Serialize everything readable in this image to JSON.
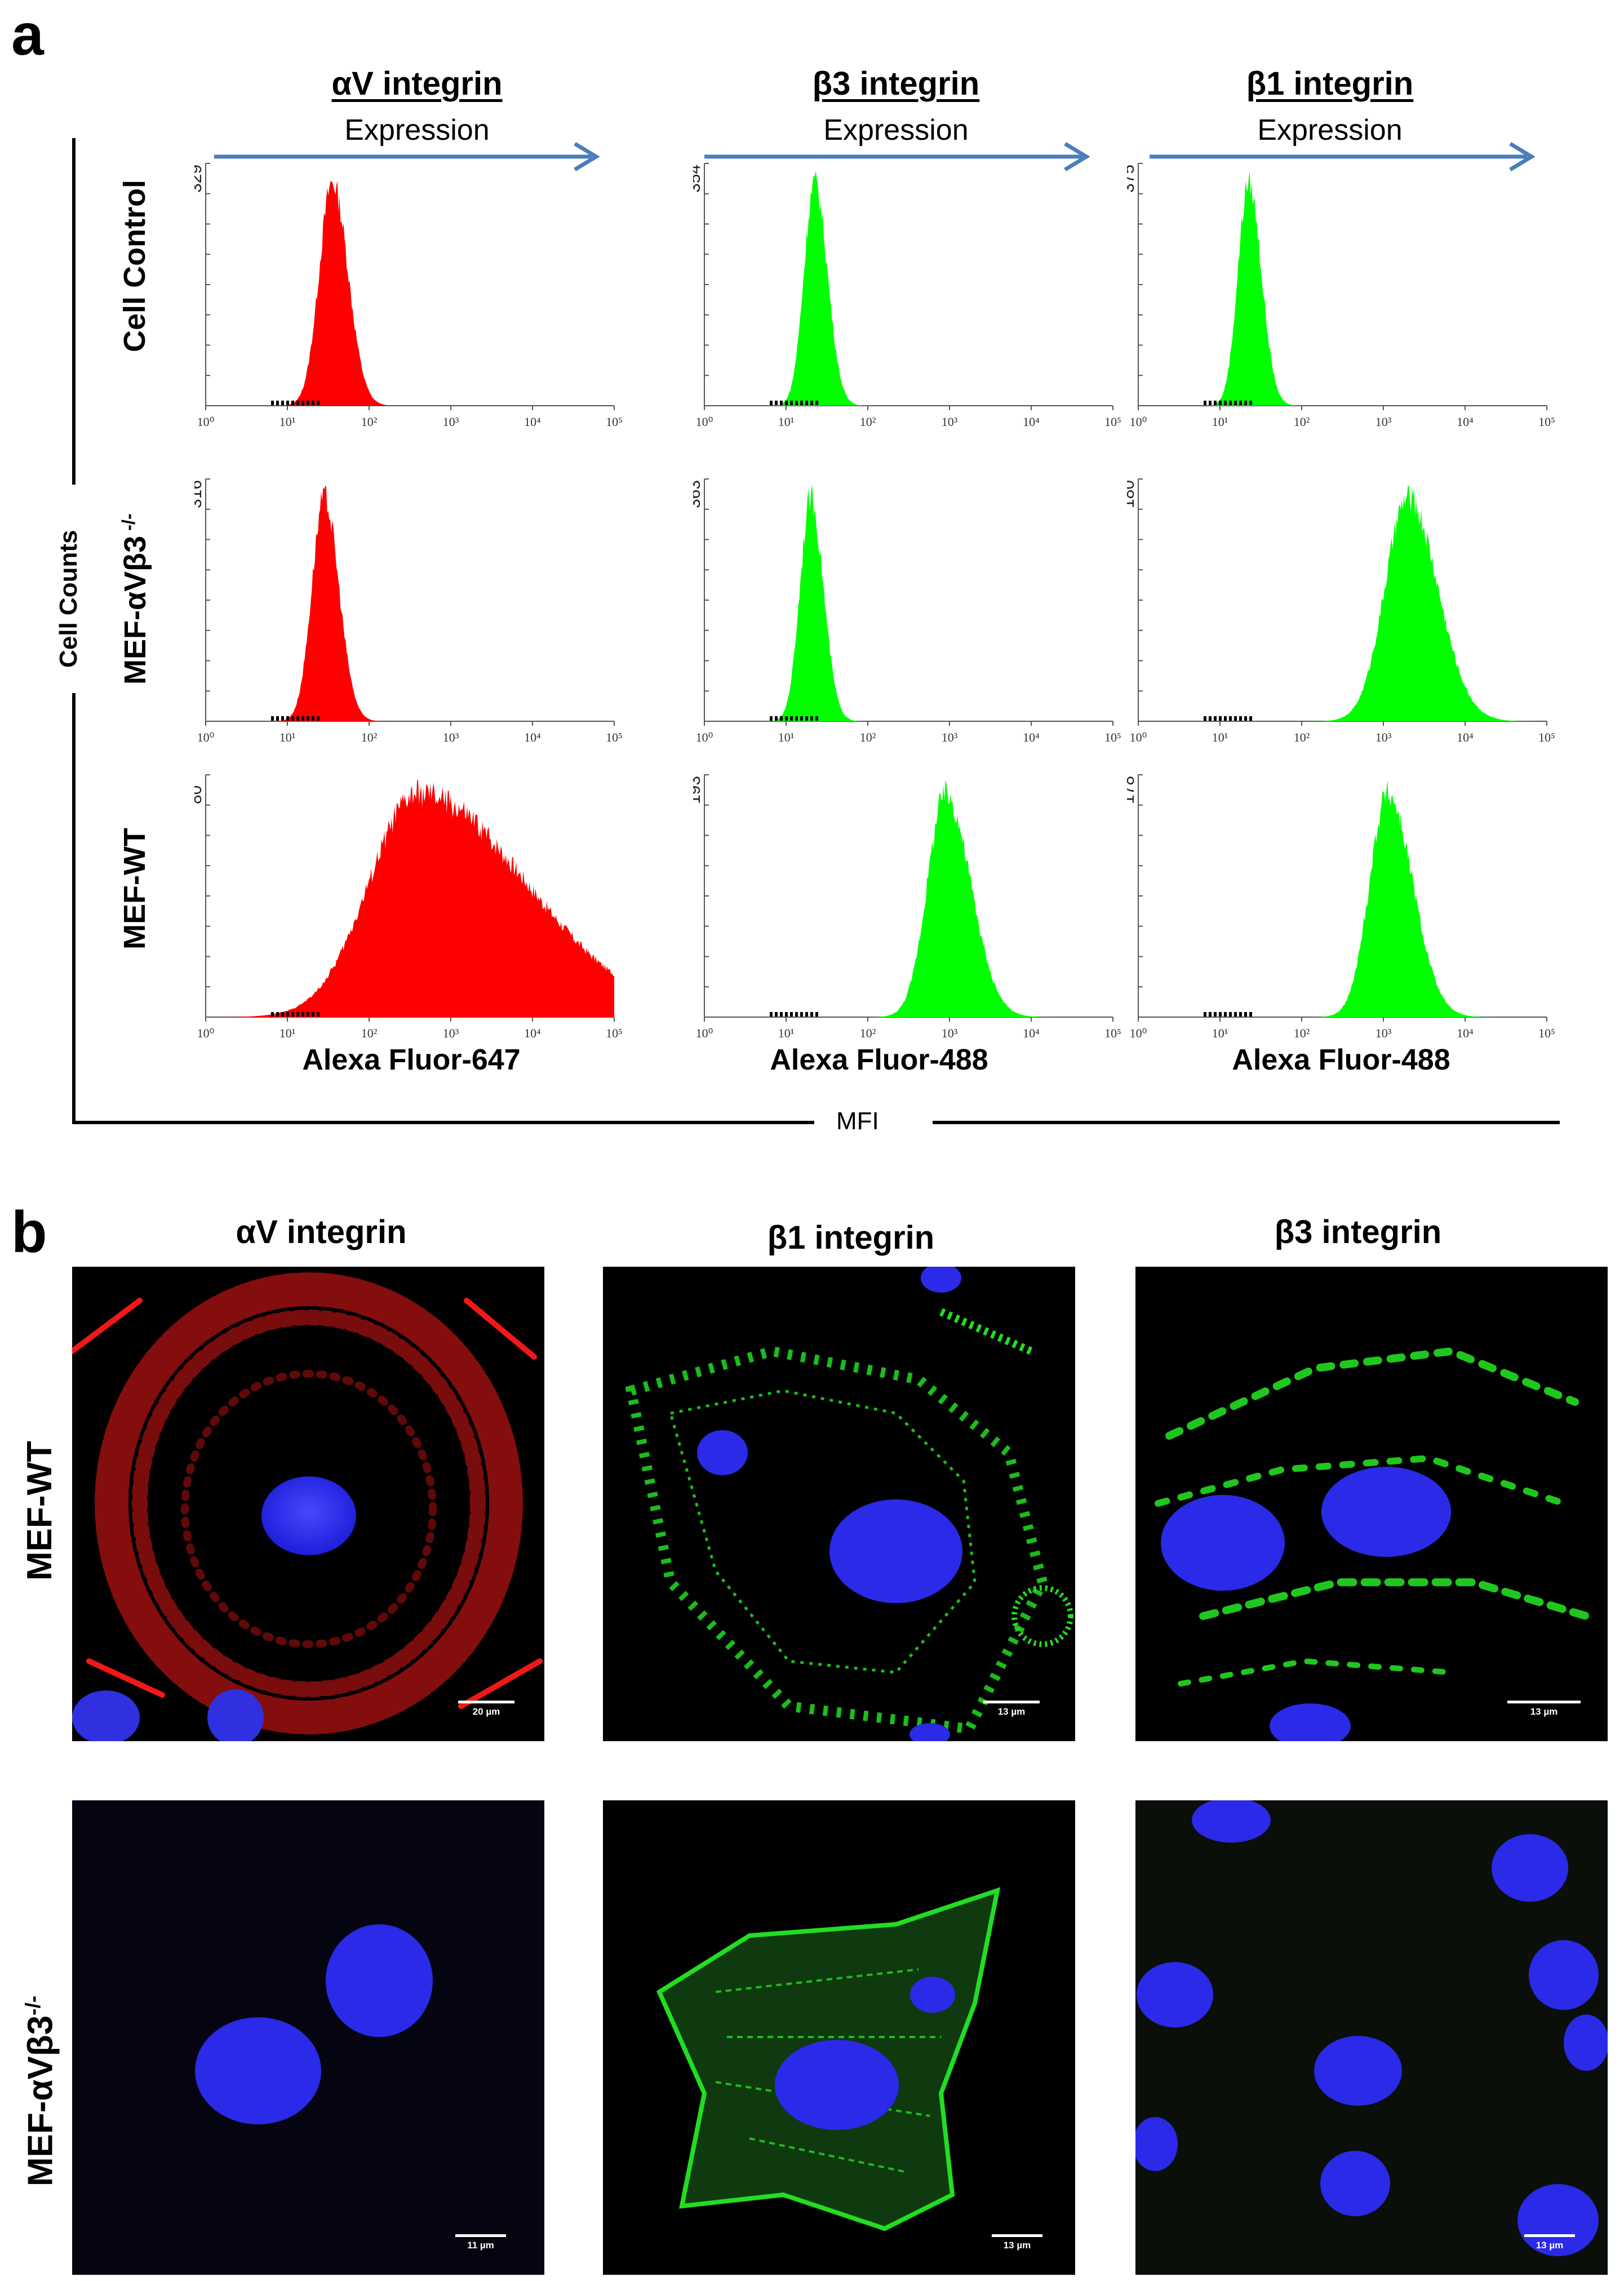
{
  "panel_a": {
    "letter": "a",
    "columns": [
      {
        "title": "αV integrin",
        "expression": "Expression",
        "channel": "Alexa Fluor-647",
        "color": "#ff0000"
      },
      {
        "title": "β3 integrin",
        "expression": "Expression",
        "channel": "Alexa Fluor-488",
        "color": "#00ff00"
      },
      {
        "title": "β1 integrin",
        "expression": "Expression",
        "channel": "Alexa Fluor-488",
        "color": "#00ff00"
      }
    ],
    "rows": [
      {
        "label": "Cell Control",
        "label_sup": ""
      },
      {
        "label": "MEF-αVβ3",
        "label_sup": " -/-"
      },
      {
        "label": "MEF-WT",
        "label_sup": ""
      }
    ],
    "y_axis_label": "Cell Counts",
    "x_axis_label": "MFI",
    "arrow_color": "#4a7ebb",
    "tick_labels": [
      "10⁰",
      "10¹",
      "10²",
      "10³",
      "10⁴",
      "10⁵"
    ],
    "tick_labels_short": [
      "10⁰",
      "10¹",
      "10²",
      "",
      "10⁴",
      "10⁵"
    ]
  },
  "chart_data": [
    {
      "type": "area",
      "row": "Cell Control",
      "column": "αV integrin",
      "ymax_label": "329",
      "xscale": "log",
      "xlim": [
        1,
        100000
      ],
      "peak_log10": 1.55,
      "width_log10": 0.16,
      "skew": 0.1
    },
    {
      "type": "area",
      "row": "Cell Control",
      "column": "β3 integrin",
      "ymax_label": "354",
      "xscale": "log",
      "xlim": [
        1,
        100000
      ],
      "peak_log10": 1.35,
      "width_log10": 0.13,
      "skew": 0.1
    },
    {
      "type": "area",
      "row": "Cell Control",
      "column": "β1 integrin",
      "ymax_label": "375",
      "xscale": "log",
      "xlim": [
        1,
        100000
      ],
      "peak_log10": 1.35,
      "width_log10": 0.13,
      "skew": 0.1
    },
    {
      "type": "area",
      "row": "MEF-αVβ3 -/-",
      "column": "αV integrin",
      "ymax_label": "316",
      "xscale": "log",
      "xlim": [
        1,
        100000
      ],
      "peak_log10": 1.45,
      "width_log10": 0.15,
      "skew": 0.1
    },
    {
      "type": "area",
      "row": "MEF-αVβ3 -/-",
      "column": "β3 integrin",
      "ymax_label": "363",
      "xscale": "log",
      "xlim": [
        1,
        100000
      ],
      "peak_log10": 1.3,
      "width_log10": 0.13,
      "skew": 0.1
    },
    {
      "type": "area",
      "row": "MEF-αVβ3 -/-",
      "column": "β1 integrin",
      "ymax_label": "180",
      "xscale": "log",
      "xlim": [
        1,
        100000
      ],
      "peak_log10": 3.3,
      "width_log10": 0.28,
      "skew": 0.15
    },
    {
      "type": "area",
      "row": "MEF-WT",
      "column": "αV integrin",
      "ymax_label": "80",
      "xscale": "log",
      "xlim": [
        1,
        100000
      ],
      "peak_log10": 2.6,
      "width_log10": 0.6,
      "skew": 0.6
    },
    {
      "type": "area",
      "row": "MEF-WT",
      "column": "β3 integrin",
      "ymax_label": "193",
      "xscale": "log",
      "xlim": [
        1,
        100000
      ],
      "peak_log10": 2.95,
      "width_log10": 0.22,
      "skew": 0.2
    },
    {
      "type": "area",
      "row": "MEF-WT",
      "column": "β1 integrin",
      "ymax_label": "178",
      "xscale": "log",
      "xlim": [
        1,
        100000
      ],
      "peak_log10": 3.05,
      "width_log10": 0.22,
      "skew": 0.2
    }
  ],
  "panel_b": {
    "letter": "b",
    "columns": [
      "αV integrin",
      "β1 integrin",
      "β3 integrin"
    ],
    "rows": [
      {
        "label": "MEF-WT",
        "label_sup": ""
      },
      {
        "label": "MEF-αVβ3",
        "label_sup": "-/-"
      }
    ],
    "images": [
      {
        "row": "MEF-WT",
        "column": "αV integrin",
        "stain_color": "#ff1a1a",
        "scale_bar": "20 µm"
      },
      {
        "row": "MEF-WT",
        "column": "β1 integrin",
        "stain_color": "#22dd22",
        "scale_bar": "13 µm"
      },
      {
        "row": "MEF-WT",
        "column": "β3 integrin",
        "stain_color": "#22dd22",
        "scale_bar": "13 µm"
      },
      {
        "row": "MEF-αVβ3-/-",
        "column": "αV integrin",
        "stain_color": "#ff1a1a",
        "scale_bar": "11 µm"
      },
      {
        "row": "MEF-αVβ3-/-",
        "column": "β1 integrin",
        "stain_color": "#22dd22",
        "scale_bar": "13 µm"
      },
      {
        "row": "MEF-αVβ3-/-",
        "column": "β3 integrin",
        "stain_color": "#22dd22",
        "scale_bar": "13 µm"
      }
    ]
  }
}
